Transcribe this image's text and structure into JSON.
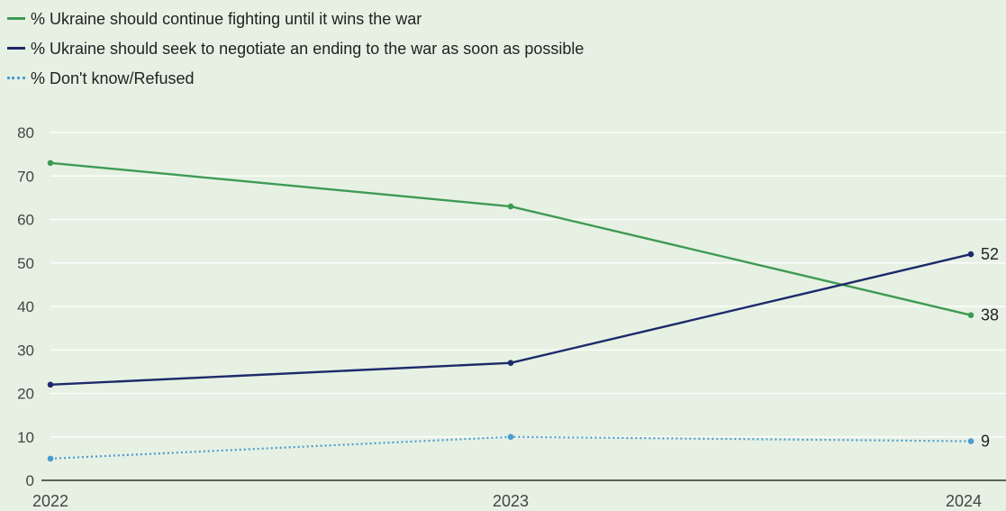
{
  "chart_data": {
    "type": "line",
    "title": "",
    "xlabel": "",
    "ylabel": "",
    "x": [
      "2022",
      "2023",
      "2024"
    ],
    "ylim": [
      0,
      80
    ],
    "yticks": [
      0,
      10,
      20,
      30,
      40,
      50,
      60,
      70,
      80
    ],
    "grid": true,
    "legend_position": "top-left",
    "series": [
      {
        "name": "% Ukraine should continue fighting until it wins the war",
        "values": [
          73,
          63,
          38
        ],
        "color": "#3f9a54",
        "style": "solid",
        "end_label": "38"
      },
      {
        "name": "% Ukraine should seek to negotiate an ending to the war as soon as possible",
        "values": [
          22,
          27,
          52
        ],
        "color": "#1d2a6b",
        "style": "solid",
        "end_label": "52"
      },
      {
        "name": "% Don't know/Refused",
        "values": [
          5,
          10,
          9
        ],
        "color": "#4b9bd1",
        "style": "dotted",
        "end_label": "9"
      }
    ]
  }
}
